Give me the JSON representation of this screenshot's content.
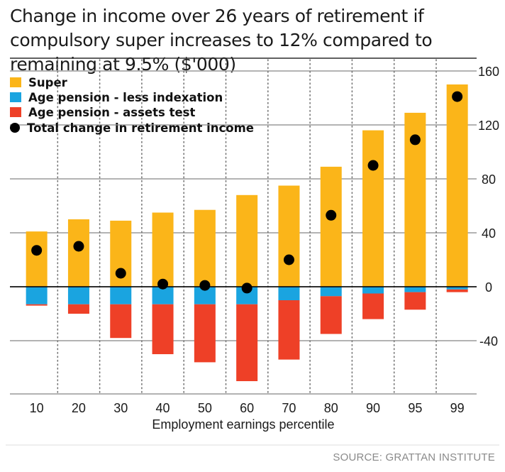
{
  "chart_data": {
    "type": "bar",
    "title": "Change in income over 26 years of retirement if compulsory super increases to 12% compared to remaining at 9.5% ($'000)",
    "xlabel": "Employment earnings percentile",
    "ylabel": "",
    "ylim": [
      -80,
      160
    ],
    "yticks": [
      160,
      120,
      80,
      40,
      0,
      -40
    ],
    "grid": true,
    "legend_position": "top-left",
    "categories": [
      "10",
      "20",
      "30",
      "40",
      "50",
      "60",
      "70",
      "80",
      "90",
      "95",
      "99"
    ],
    "series": [
      {
        "name": "Super",
        "color": "#fbb519",
        "values": [
          41,
          50,
          49,
          55,
          57,
          68,
          75,
          89,
          116,
          129,
          150
        ]
      },
      {
        "name": "Age pension - less indexation",
        "color": "#1aa4e0",
        "values": [
          -13,
          -13,
          -13,
          -13,
          -13,
          -13,
          -10,
          -7,
          -5,
          -4,
          -2
        ]
      },
      {
        "name": "Age pension - assets test",
        "color": "#ee4027",
        "values": [
          -1,
          -7,
          -25,
          -37,
          -43,
          -57,
          -44,
          -28,
          -19,
          -13,
          -2
        ]
      },
      {
        "name": "Total change in retirement income",
        "color": "#000000",
        "values": [
          27,
          30,
          10,
          2,
          1,
          -1,
          20,
          53,
          90,
          109,
          141
        ]
      }
    ]
  },
  "source": "SOURCE: GRATTAN INSTITUTE"
}
